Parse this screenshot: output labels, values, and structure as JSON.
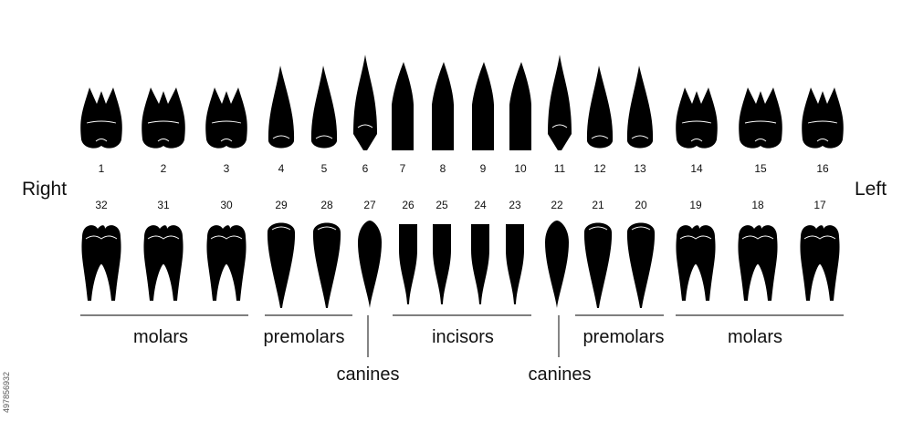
{
  "sides": {
    "right": "Right",
    "left": "Left"
  },
  "groups": {
    "molars_right": "molars",
    "premolars_right": "premolars",
    "incisors": "incisors",
    "premolars_left": "premolars",
    "molars_left": "molars",
    "canines_right": "canines",
    "canines_left": "canines"
  },
  "stock_id": "497856932",
  "colors": {
    "tooth": "#000000",
    "crease": "#ffffff",
    "text": "#111111",
    "line": "#333333"
  },
  "upper_teeth": [
    {
      "num": "1",
      "type": "molar3"
    },
    {
      "num": "2",
      "type": "molar2"
    },
    {
      "num": "3",
      "type": "molar3"
    },
    {
      "num": "4",
      "type": "premolar"
    },
    {
      "num": "5",
      "type": "premolar"
    },
    {
      "num": "6",
      "type": "canine"
    },
    {
      "num": "7",
      "type": "incisor"
    },
    {
      "num": "8",
      "type": "incisor"
    },
    {
      "num": "9",
      "type": "incisor"
    },
    {
      "num": "10",
      "type": "incisor"
    },
    {
      "num": "11",
      "type": "canine"
    },
    {
      "num": "12",
      "type": "premolar"
    },
    {
      "num": "13",
      "type": "premolar"
    },
    {
      "num": "14",
      "type": "molar3"
    },
    {
      "num": "15",
      "type": "molar2"
    },
    {
      "num": "16",
      "type": "molar3"
    }
  ],
  "lower_teeth": [
    {
      "num": "32",
      "type": "molar"
    },
    {
      "num": "31",
      "type": "molar"
    },
    {
      "num": "30",
      "type": "molar"
    },
    {
      "num": "29",
      "type": "premolar"
    },
    {
      "num": "28",
      "type": "premolar"
    },
    {
      "num": "27",
      "type": "canine"
    },
    {
      "num": "26",
      "type": "incisor"
    },
    {
      "num": "25",
      "type": "incisor"
    },
    {
      "num": "24",
      "type": "incisor"
    },
    {
      "num": "23",
      "type": "incisor"
    },
    {
      "num": "22",
      "type": "canine"
    },
    {
      "num": "21",
      "type": "premolar"
    },
    {
      "num": "20",
      "type": "premolar"
    },
    {
      "num": "19",
      "type": "molar"
    },
    {
      "num": "18",
      "type": "molar"
    },
    {
      "num": "17",
      "type": "molar"
    }
  ]
}
